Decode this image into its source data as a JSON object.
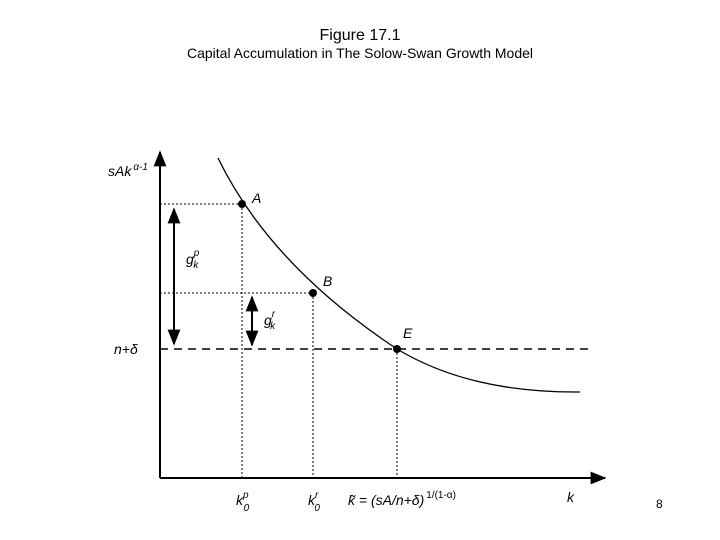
{
  "header": {
    "title": "Figure 17.1",
    "subtitle": "Capital Accumulation in The Solow-Swan Growth Model"
  },
  "y_axis_label": {
    "base": "sAk",
    "sup": "α-1"
  },
  "x_axis_label": "k",
  "points": [
    {
      "label": "A"
    },
    {
      "label": "B"
    },
    {
      "label": "E"
    }
  ],
  "growth_labels": [
    {
      "base": "g",
      "sup": "p",
      "sub": "k"
    },
    {
      "base": "g",
      "sup": "r",
      "sub": "k"
    }
  ],
  "line_label": "n+δ",
  "x_labels": [
    {
      "base": "k",
      "sup": "p",
      "sub": "0"
    },
    {
      "base": "k",
      "sup": "r",
      "sub": "0"
    },
    {
      "base": "k̃ = (sA/n+δ)",
      "sup": "1/(1-α)"
    }
  ],
  "page_number": "8"
}
